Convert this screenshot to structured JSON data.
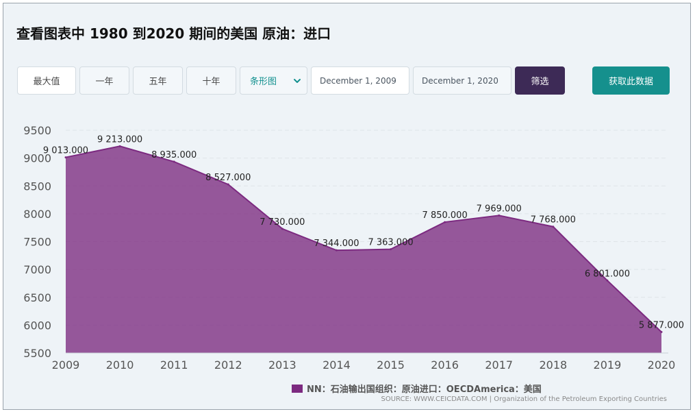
{
  "title": "查看图表中 1980 到2020 期间的美国 原油：进口",
  "toolbar": {
    "range_buttons": [
      "最大值",
      "一年",
      "五年",
      "十年"
    ],
    "chart_type_select": "条形图",
    "date_start": "December 1, 2009",
    "date_end": "December 1, 2020",
    "filter_label": "筛选",
    "get_data_label": "获取此数据"
  },
  "legend_label": "NN：石油输出国组织：原油进口：OECDAmerica：美国",
  "source": "SOURCE: WWW.CEICDATA.COM | Organization of the Petroleum Exporting Countries",
  "colors": {
    "series": "#7c2a80",
    "accent_dark": "#3d2a56",
    "accent_teal": "#15908d"
  },
  "chart_data": {
    "type": "area",
    "categories": [
      "2009",
      "2010",
      "2011",
      "2012",
      "2013",
      "2014",
      "2015",
      "2016",
      "2017",
      "2018",
      "2019",
      "2020"
    ],
    "x_ticks": [
      "2009",
      "2010",
      "2011",
      "2012",
      "2013",
      "2014",
      "2015",
      "2016",
      "2017",
      "2018",
      "2019",
      "2020"
    ],
    "y_ticks": [
      "5500",
      "6000",
      "6500",
      "7000",
      "7500",
      "8000",
      "8500",
      "9000",
      "9500"
    ],
    "ylim": [
      5500,
      9500
    ],
    "grid": true,
    "series": [
      {
        "name": "NN：石油输出国组织：原油进口：OECDAmerica：美国",
        "points": [
          {
            "x": "2009",
            "y": 9013.0,
            "label": "9 013.000"
          },
          {
            "x": "2010",
            "y": 9213.0,
            "label": "9 213.000"
          },
          {
            "x": "2011",
            "y": 8935.0,
            "label": "8 935.000"
          },
          {
            "x": "2012",
            "y": 8527.0,
            "label": "8 527.000"
          },
          {
            "x": "2013",
            "y": 7730.0,
            "label": "7 730.000"
          },
          {
            "x": "2014",
            "y": 7344.0,
            "label": "7 344.000"
          },
          {
            "x": "2015",
            "y": 7363.0,
            "label": "7 363.000"
          },
          {
            "x": "2016",
            "y": 7850.0,
            "label": "7 850.000"
          },
          {
            "x": "2017",
            "y": 7969.0,
            "label": "7 969.000"
          },
          {
            "x": "2018",
            "y": 7768.0,
            "label": "7 768.000"
          },
          {
            "x": "2019",
            "y": 6801.0,
            "label": "6 801.000"
          },
          {
            "x": "2020",
            "y": 5877.0,
            "label": "5 877.000"
          }
        ]
      }
    ]
  }
}
